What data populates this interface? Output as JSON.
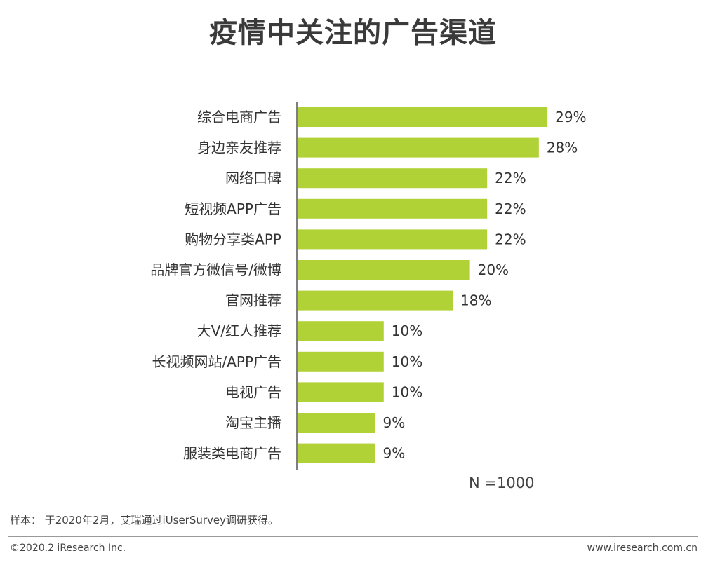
{
  "title": "疫情中关注的广告渠道",
  "chart_data": {
    "type": "bar",
    "orientation": "horizontal",
    "categories": [
      "综合电商广告",
      "身边亲友推荐",
      "网络口碑",
      "短视频APP广告",
      "购物分享类APP",
      "品牌官方微信号/微博",
      "官网推荐",
      "大V/红人推荐",
      "长视频网站/APP广告",
      "电视广告",
      "淘宝主播",
      "服装类电商广告"
    ],
    "values": [
      29,
      28,
      22,
      22,
      22,
      20,
      18,
      10,
      10,
      10,
      9,
      9
    ],
    "value_labels": [
      "29%",
      "28%",
      "22%",
      "22%",
      "22%",
      "20%",
      "18%",
      "10%",
      "10%",
      "10%",
      "9%",
      "9%"
    ],
    "unit": "%",
    "bar_color": "#b0d236",
    "axis_color": "#555555",
    "grid": false,
    "legend": "none"
  },
  "sample_note": "N =1000",
  "source": "样本： 于2020年2月，艾瑞通过iUserSurvey调研获得。",
  "footer": {
    "copyright": "©2020.2 iResearch Inc.",
    "website": "www.iresearch.com.cn"
  }
}
